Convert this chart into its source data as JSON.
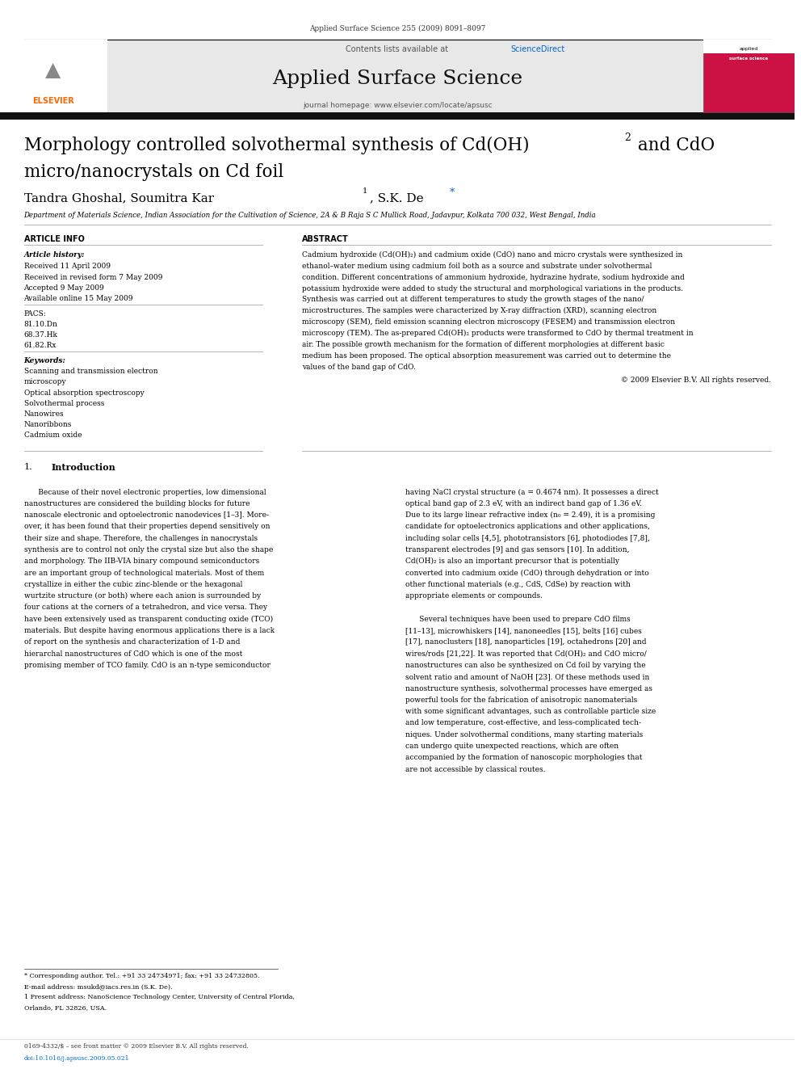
{
  "page_width": 9.92,
  "page_height": 13.23,
  "bg_color": "#ffffff",
  "header_journal_text": "Applied Surface Science 255 (2009) 8091–8097",
  "header_gray_bg": "#e8e8e8",
  "elsevier_logo_color": "#ff6600",
  "sciencedirect_color": "#0066cc",
  "journal_title": "Applied Surface Science",
  "journal_url": "journal homepage: www.elsevier.com/locate/apsusc",
  "contents_text": "Contents lists available at ",
  "sciencedirect_text": "ScienceDirect",
  "paper_title_line1": "Morphology controlled solvothermal synthesis of Cd(OH)",
  "paper_title_sub": "2",
  "paper_title_line1b": " and CdO",
  "paper_title_line2": "micro/nanocrystals on Cd foil",
  "authors": "Tandra Ghoshal, Soumitra Kar",
  "author_sup1": "1",
  "authors2": ", S.K. De",
  "author_star": "*",
  "affiliation": "Department of Materials Science, Indian Association for the Cultivation of Science, 2A & B Raja S C Mullick Road, Jadavpur, Kolkata 700 032, West Bengal, India",
  "article_info_title": "ARTICLE INFO",
  "abstract_title": "ABSTRACT",
  "article_history_label": "Article history:",
  "received1": "Received 11 April 2009",
  "received2": "Received in revised form 7 May 2009",
  "accepted": "Accepted 9 May 2009",
  "available": "Available online 15 May 2009",
  "pacs_label": "PACS:",
  "pacs1": "81.10.Dn",
  "pacs2": "68.37.Hk",
  "pacs3": "61.82.Rx",
  "keywords_label": "Keywords:",
  "kw1": "Scanning and transmission electron",
  "kw2": "microscopy",
  "kw3": "Optical absorption spectroscopy",
  "kw4": "Solvothermal process",
  "kw5": "Nanowires",
  "kw6": "Nanoribbons",
  "kw7": "Cadmium oxide",
  "abstract_lines": [
    "Cadmium hydroxide (Cd(OH)₂) and cadmium oxide (CdO) nano and micro crystals were synthesized in",
    "ethanol–water medium using cadmium foil both as a source and substrate under solvothermal",
    "condition. Different concentrations of ammonium hydroxide, hydrazine hydrate, sodium hydroxide and",
    "potassium hydroxide were added to study the structural and morphological variations in the products.",
    "Synthesis was carried out at different temperatures to study the growth stages of the nano/",
    "microstructures. The samples were characterized by X-ray diffraction (XRD), scanning electron",
    "microscopy (SEM), field emission scanning electron microscopy (FESEM) and transmission electron",
    "microscopy (TEM). The as-prepared Cd(OH)₂ products were transformed to CdO by thermal treatment in",
    "air. The possible growth mechanism for the formation of different morphologies at different basic",
    "medium has been proposed. The optical absorption measurement was carried out to determine the",
    "values of the band gap of CdO."
  ],
  "copyright_text": "© 2009 Elsevier B.V. All rights reserved.",
  "intro_col1_lines": [
    "      Because of their novel electronic properties, low dimensional",
    "nanostructures are considered the building blocks for future",
    "nanoscale electronic and optoelectronic nanodevices [1–3]. More-",
    "over, it has been found that their properties depend sensitively on",
    "their size and shape. Therefore, the challenges in nanocrystals",
    "synthesis are to control not only the crystal size but also the shape",
    "and morphology. The IIB-VIA binary compound semiconductors",
    "are an important group of technological materials. Most of them",
    "crystallize in either the cubic zinc-blende or the hexagonal",
    "wurtzite structure (or both) where each anion is surrounded by",
    "four cations at the corners of a tetrahedron, and vice versa. They",
    "have been extensively used as transparent conducting oxide (TCO)",
    "materials. But despite having enormous applications there is a lack",
    "of report on the synthesis and characterization of 1-D and",
    "hierarchal nanostructures of CdO which is one of the most",
    "promising member of TCO family. CdO is an n-type semiconductor"
  ],
  "intro_col2_lines": [
    "having NaCl crystal structure (a = 0.4674 nm). It possesses a direct",
    "optical band gap of 2.3 eV, with an indirect band gap of 1.36 eV.",
    "Due to its large linear refractive index (n₀ = 2.49), it is a promising",
    "candidate for optoelectronics applications and other applications,",
    "including solar cells [4,5], phototransistors [6], photodiodes [7,8],",
    "transparent electrodes [9] and gas sensors [10]. In addition,",
    "Cd(OH)₂ is also an important precursor that is potentially",
    "converted into cadmium oxide (CdO) through dehydration or into",
    "other functional materials (e.g., CdS, CdSe) by reaction with",
    "appropriate elements or compounds.",
    "",
    "      Several techniques have been used to prepare CdO films",
    "[11–13], microwhiskers [14], nanoneedles [15], belts [16] cubes",
    "[17], nanoclusters [18], nanoparticles [19], octahedrons [20] and",
    "wires/rods [21,22]. It was reported that Cd(OH)₂ and CdO micro/",
    "nanostructures can also be synthesized on Cd foil by varying the",
    "solvent ratio and amount of NaOH [23]. Of these methods used in",
    "nanostructure synthesis, solvothermal processes have emerged as",
    "powerful tools for the fabrication of anisotropic nanomaterials",
    "with some significant advantages, such as controllable particle size",
    "and low temperature, cost-effective, and less-complicated tech-",
    "niques. Under solvothermal conditions, many starting materials",
    "can undergo quite unexpected reactions, which are often",
    "accompanied by the formation of nanoscopic morphologies that",
    "are not accessible by classical routes."
  ],
  "footnote_star": "* Corresponding author. Tel.: +91 33 24734971; fax: +91 33 24732805.",
  "footnote_email": "E-mail address: msukd@iacs.res.in (S.K. De).",
  "footnote_1": "1 Present address: NanoScience Technology Center, University of Central Florida,",
  "footnote_2": "Orlando, FL 32826, USA.",
  "bottom_text1": "0169-4332/$ – see front matter © 2009 Elsevier B.V. All rights reserved.",
  "bottom_text2": "doi:10.1016/j.apsusc.2009.05.021"
}
